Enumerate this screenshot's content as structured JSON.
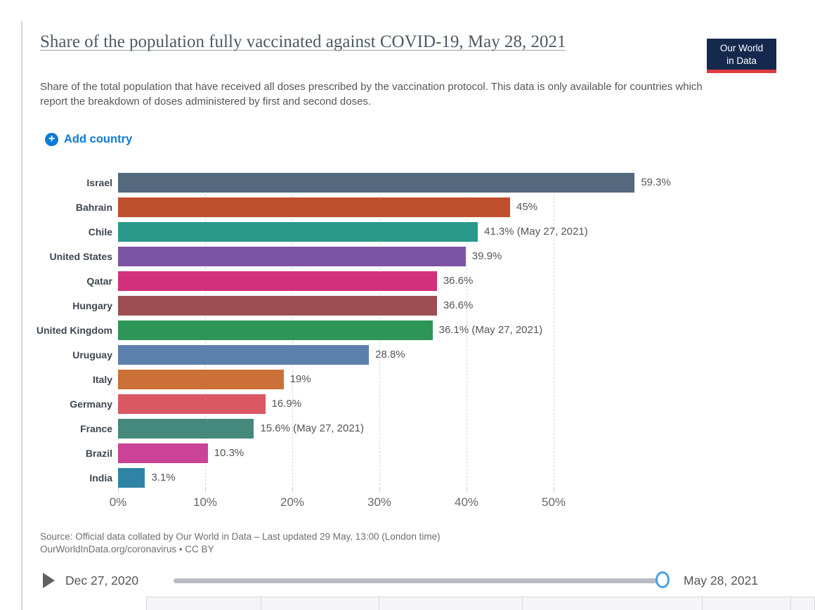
{
  "header": {
    "title": "Share of the population fully vaccinated against COVID-19, May 28, 2021",
    "subtitle": "Share of the total population that have received all doses prescribed by the vaccination protocol. This data is only available for countries which report the breakdown of doses administered by first and second doses.",
    "logo": {
      "line1": "Our World",
      "line2": "in Data",
      "bg_color": "#15294E",
      "accent_color": "#E0393E"
    }
  },
  "controls": {
    "add_country_label": "Add country",
    "accent_color": "#0D7AD4"
  },
  "chart_data": {
    "type": "bar",
    "orientation": "horizontal",
    "title": "Share of the population fully vaccinated against COVID-19, May 28, 2021",
    "xlabel": "",
    "ylabel": "",
    "xlim": [
      0,
      60
    ],
    "grid": "dashed-vertical",
    "x_ticks": [
      {
        "value": 0,
        "label": "0%"
      },
      {
        "value": 10,
        "label": "10%"
      },
      {
        "value": 20,
        "label": "20%"
      },
      {
        "value": 30,
        "label": "30%"
      },
      {
        "value": 40,
        "label": "40%"
      },
      {
        "value": 50,
        "label": "50%"
      }
    ],
    "gridline_values": [
      10,
      20,
      30,
      40,
      50
    ],
    "series": [
      {
        "name": "Israel",
        "value": 59.3,
        "label": "59.3%",
        "color": "#54687E"
      },
      {
        "name": "Bahrain",
        "value": 45,
        "label": "45%",
        "color": "#BE4F2C"
      },
      {
        "name": "Chile",
        "value": 41.3,
        "label": "41.3% (May 27, 2021)",
        "color": "#28998B"
      },
      {
        "name": "United States",
        "value": 39.9,
        "label": "39.9%",
        "color": "#7D54A4"
      },
      {
        "name": "Qatar",
        "value": 36.6,
        "label": "36.6%",
        "color": "#D2307C"
      },
      {
        "name": "Hungary",
        "value": 36.6,
        "label": "36.6%",
        "color": "#9D4E53"
      },
      {
        "name": "United Kingdom",
        "value": 36.1,
        "label": "36.1% (May 27, 2021)",
        "color": "#2E9558"
      },
      {
        "name": "Uruguay",
        "value": 28.8,
        "label": "28.8%",
        "color": "#5C80AC"
      },
      {
        "name": "Italy",
        "value": 19,
        "label": "19%",
        "color": "#CB7038"
      },
      {
        "name": "Germany",
        "value": 16.9,
        "label": "16.9%",
        "color": "#D95864"
      },
      {
        "name": "France",
        "value": 15.6,
        "label": "15.6% (May 27, 2021)",
        "color": "#44897B"
      },
      {
        "name": "Brazil",
        "value": 10.3,
        "label": "10.3%",
        "color": "#CA4397"
      },
      {
        "name": "India",
        "value": 3.1,
        "label": "3.1%",
        "color": "#2F84A6"
      }
    ]
  },
  "footer": {
    "source_line1": "Source: Official data collated by Our World in Data – Last updated 29 May, 13:00 (London time)",
    "source_line2": "OurWorldInData.org/coronavirus • CC BY"
  },
  "timeline": {
    "start_label": "Dec 27, 2020",
    "end_label": "May 28, 2021",
    "handle_color": "#45A2E8"
  }
}
